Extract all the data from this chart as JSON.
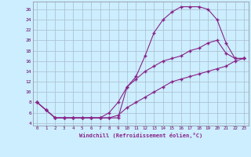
{
  "bg_color": "#cceeff",
  "grid_color": "#aabbcc",
  "line_color": "#882288",
  "marker": "+",
  "xlabel": "Windchill (Refroidissement éolien,°C)",
  "xlim": [
    -0.5,
    23.5
  ],
  "ylim": [
    3.5,
    27.5
  ],
  "yticks": [
    4,
    6,
    8,
    10,
    12,
    14,
    16,
    18,
    20,
    22,
    24,
    26
  ],
  "xticks": [
    0,
    1,
    2,
    3,
    4,
    5,
    6,
    7,
    8,
    9,
    10,
    11,
    12,
    13,
    14,
    15,
    16,
    17,
    18,
    19,
    20,
    21,
    22,
    23
  ],
  "series": [
    {
      "x": [
        0,
        1,
        2,
        3,
        4,
        5,
        6,
        7,
        8,
        9,
        10,
        11,
        12,
        13,
        14,
        15,
        16,
        17,
        18,
        19,
        20,
        21,
        22,
        23
      ],
      "y": [
        8,
        6.5,
        5,
        5,
        5,
        5,
        5,
        5,
        5,
        5,
        11,
        13,
        17,
        21.5,
        24,
        25.5,
        26.5,
        26.5,
        26.5,
        26,
        24,
        19.5,
        16.5,
        16.5
      ]
    },
    {
      "x": [
        0,
        1,
        2,
        3,
        4,
        5,
        6,
        7,
        8,
        9,
        10,
        11,
        12,
        13,
        14,
        15,
        16,
        17,
        18,
        19,
        20,
        21,
        22,
        23
      ],
      "y": [
        8,
        6.5,
        5,
        5,
        5,
        5,
        5,
        5,
        6,
        8,
        11,
        12.5,
        14,
        15,
        16,
        16.5,
        17,
        18,
        18.5,
        19.5,
        20,
        17.5,
        16.5,
        16.5
      ]
    },
    {
      "x": [
        0,
        1,
        2,
        3,
        4,
        5,
        6,
        7,
        8,
        9,
        10,
        11,
        12,
        13,
        14,
        15,
        16,
        17,
        18,
        19,
        20,
        21,
        22,
        23
      ],
      "y": [
        8,
        6.5,
        5,
        5,
        5,
        5,
        5,
        5,
        5,
        5.5,
        7,
        8,
        9,
        10,
        11,
        12,
        12.5,
        13,
        13.5,
        14,
        14.5,
        15,
        16,
        16.5
      ]
    }
  ]
}
